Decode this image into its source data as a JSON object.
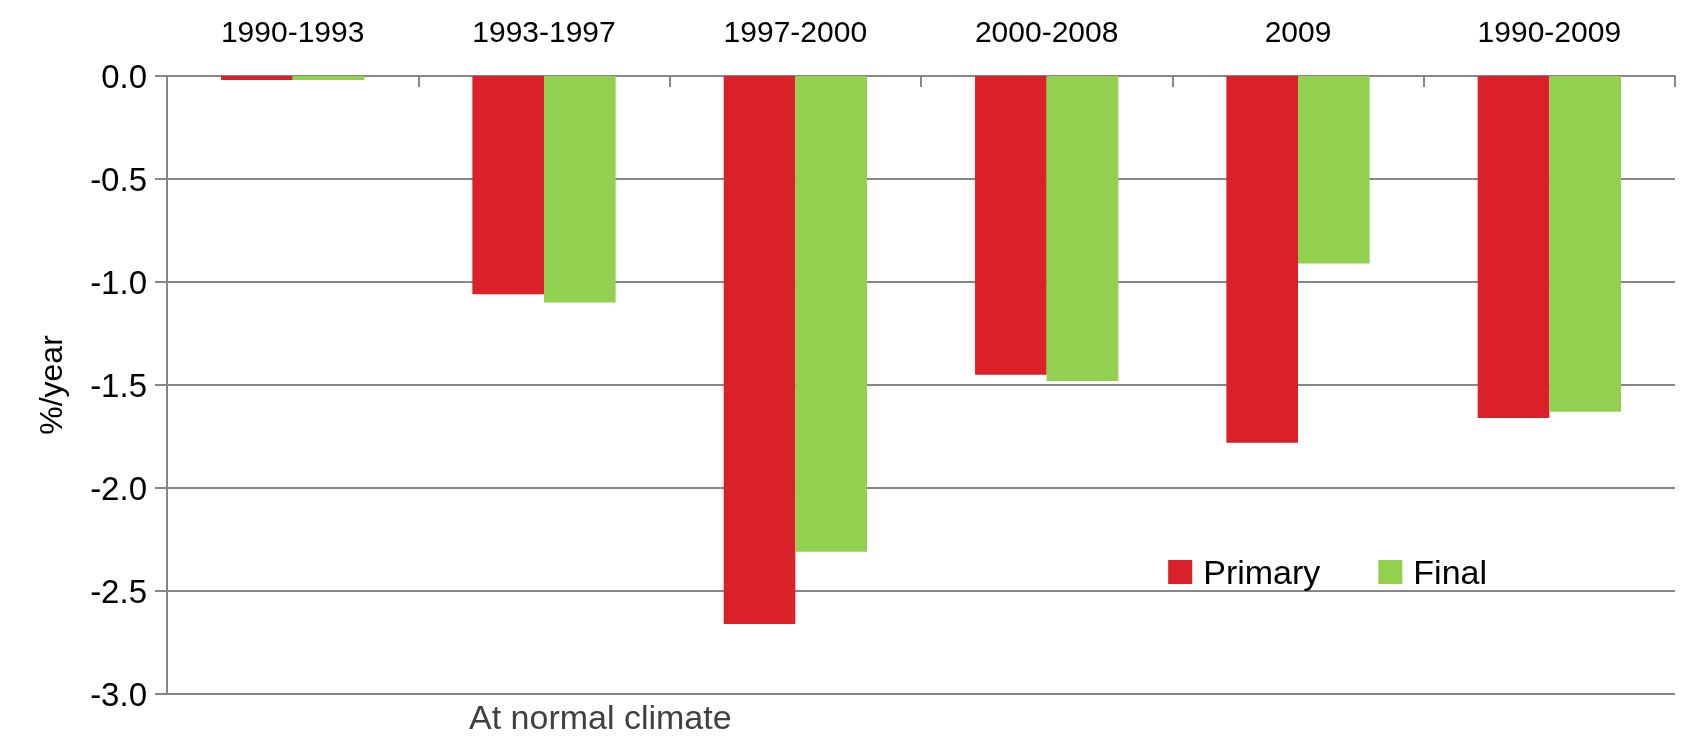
{
  "chart_data": {
    "type": "bar",
    "ylabel": "%/year",
    "annotations": [
      "At normal climate"
    ],
    "categories": [
      "1990-1993",
      "1993-1997",
      "1997-2000",
      "2000-2008",
      "2009",
      "1990-2009"
    ],
    "series": [
      {
        "name": "Primary",
        "color": "#da2029",
        "values": [
          -0.02,
          -1.06,
          -2.66,
          -1.45,
          -1.78,
          -1.66
        ]
      },
      {
        "name": "Final",
        "color": "#92d050",
        "values": [
          -0.02,
          -1.1,
          -2.31,
          -1.48,
          -0.91,
          -1.63
        ]
      }
    ],
    "ylim": [
      -3,
      0
    ],
    "yticks": [
      {
        "value": 0,
        "label": "0.0"
      },
      -0.5,
      {
        "value": -1,
        "label": "-1.0"
      },
      -1.5,
      {
        "value": -2,
        "label": "-2.0"
      },
      -2.5,
      {
        "value": -3,
        "label": "-3.0"
      }
    ],
    "grid": "y",
    "legend": "bottom right"
  }
}
